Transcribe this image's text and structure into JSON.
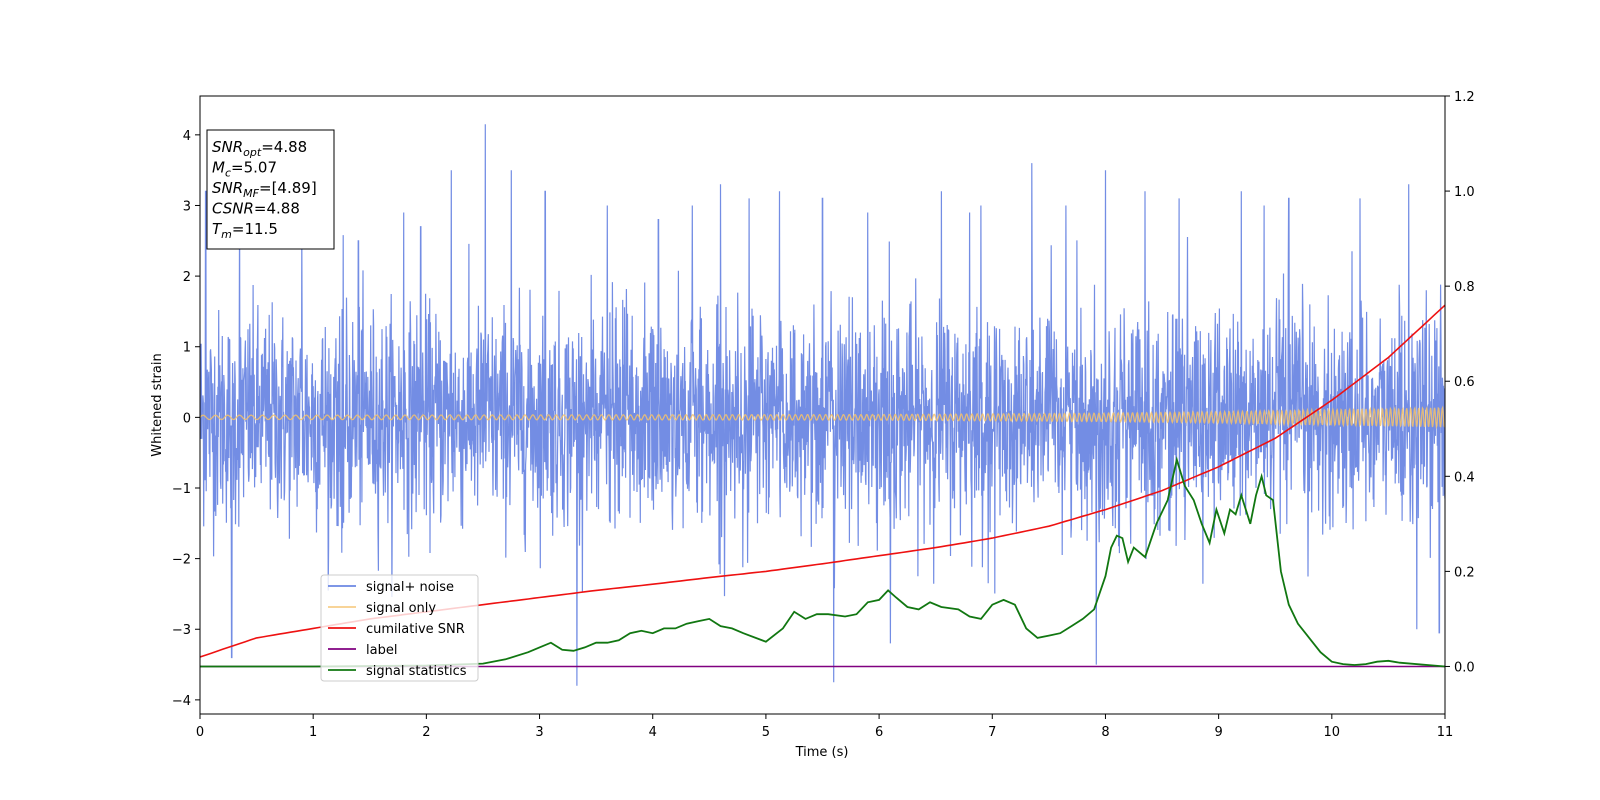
{
  "chart_data": {
    "type": "line",
    "xlabel": "Time (s)",
    "ylabel": "Whitened strain",
    "xlim": [
      0,
      11
    ],
    "ylim": [
      -4.2,
      4.55
    ],
    "ylim_right": [
      -0.1,
      1.2
    ],
    "x_ticks": [
      0,
      1,
      2,
      3,
      4,
      5,
      6,
      7,
      8,
      9,
      10,
      11
    ],
    "y_ticks": [
      -4,
      -3,
      -2,
      -1,
      0,
      1,
      2,
      3,
      4
    ],
    "y_ticks_right": [
      0.0,
      0.2,
      0.4,
      0.6,
      0.8,
      1.0,
      1.2
    ],
    "grid": false,
    "legend_position": "lower-left",
    "annotation": [
      {
        "base": "SNR",
        "sub": "opt",
        "value": "=4.88"
      },
      {
        "base": "M",
        "sub": "c",
        "value": "=5.07"
      },
      {
        "base": "SNR",
        "sub": "MF",
        "value": "=[4.89]"
      },
      {
        "base": "CSNR",
        "sub": "",
        "value": "=4.88"
      },
      {
        "base": "T",
        "sub": "m",
        "value": "=11.5"
      }
    ],
    "series": [
      {
        "name": "signal+ noise",
        "color": "#6b87e3",
        "axis": "left",
        "kind": "noise",
        "x_range": [
          0,
          11
        ],
        "sigma": 0.75,
        "spikes": [
          [
            0.05,
            3.2
          ],
          [
            0.28,
            -3.4
          ],
          [
            0.35,
            3.1
          ],
          [
            0.9,
            2.6
          ],
          [
            1.4,
            2.5
          ],
          [
            1.8,
            2.9
          ],
          [
            1.95,
            2.7
          ],
          [
            2.22,
            3.5
          ],
          [
            2.52,
            4.15
          ],
          [
            2.75,
            3.5
          ],
          [
            3.05,
            3.2
          ],
          [
            3.33,
            -3.8
          ],
          [
            3.6,
            3.0
          ],
          [
            4.05,
            2.8
          ],
          [
            4.35,
            3.0
          ],
          [
            4.6,
            3.3
          ],
          [
            4.85,
            3.1
          ],
          [
            5.12,
            3.2
          ],
          [
            5.5,
            3.1
          ],
          [
            5.6,
            -3.75
          ],
          [
            5.9,
            2.9
          ],
          [
            6.1,
            -3.2
          ],
          [
            6.55,
            3.2
          ],
          [
            6.8,
            2.9
          ],
          [
            6.9,
            3.0
          ],
          [
            7.35,
            3.6
          ],
          [
            7.65,
            3.0
          ],
          [
            7.92,
            -3.5
          ],
          [
            8.0,
            3.5
          ],
          [
            8.35,
            3.2
          ],
          [
            8.65,
            3.1
          ],
          [
            9.2,
            3.2
          ],
          [
            9.4,
            3.0
          ],
          [
            9.62,
            3.1
          ],
          [
            10.25,
            3.1
          ],
          [
            10.68,
            3.3
          ],
          [
            10.75,
            -3.0
          ],
          [
            10.95,
            -3.05
          ]
        ]
      },
      {
        "name": "signal only",
        "color": "#f5c26b",
        "axis": "left",
        "kind": "chirp",
        "envelope": {
          "x": [
            0,
            6,
            8,
            9,
            10,
            11
          ],
          "amp": [
            0.03,
            0.04,
            0.06,
            0.08,
            0.11,
            0.14
          ]
        }
      },
      {
        "name": "cumilative SNR",
        "color": "#ee1111",
        "axis": "right",
        "x": [
          0,
          0.5,
          1,
          1.5,
          2,
          2.5,
          3,
          3.5,
          4,
          4.5,
          5,
          5.5,
          6,
          6.5,
          7,
          7.5,
          8,
          8.5,
          9,
          9.5,
          10,
          10.5,
          11
        ],
        "y": [
          0.02,
          0.06,
          0.08,
          0.1,
          0.115,
          0.13,
          0.145,
          0.16,
          0.173,
          0.187,
          0.2,
          0.216,
          0.233,
          0.25,
          0.27,
          0.295,
          0.33,
          0.37,
          0.42,
          0.48,
          0.56,
          0.65,
          0.76
        ]
      },
      {
        "name": "label",
        "color": "#800080",
        "axis": "right",
        "x": [
          0,
          11
        ],
        "y": [
          0.0,
          0.0
        ]
      },
      {
        "name": "signal statistics",
        "color": "#117711",
        "axis": "right",
        "x": [
          0,
          1,
          2,
          2.5,
          2.7,
          2.9,
          3.0,
          3.1,
          3.2,
          3.3,
          3.4,
          3.5,
          3.6,
          3.7,
          3.8,
          3.9,
          4.0,
          4.1,
          4.2,
          4.3,
          4.4,
          4.5,
          4.6,
          4.7,
          4.8,
          5.0,
          5.15,
          5.25,
          5.35,
          5.45,
          5.55,
          5.7,
          5.8,
          5.9,
          6.0,
          6.08,
          6.15,
          6.25,
          6.35,
          6.45,
          6.55,
          6.7,
          6.8,
          6.9,
          7.0,
          7.1,
          7.2,
          7.3,
          7.4,
          7.5,
          7.6,
          7.7,
          7.8,
          7.9,
          8.0,
          8.05,
          8.1,
          8.15,
          8.2,
          8.25,
          8.35,
          8.45,
          8.55,
          8.63,
          8.7,
          8.78,
          8.85,
          8.92,
          8.98,
          9.05,
          9.1,
          9.15,
          9.2,
          9.28,
          9.33,
          9.38,
          9.42,
          9.48,
          9.55,
          9.62,
          9.7,
          9.8,
          9.9,
          10.0,
          10.1,
          10.2,
          10.3,
          10.4,
          10.5,
          10.6,
          11.0
        ],
        "y": [
          0.0,
          0.0,
          0.002,
          0.006,
          0.015,
          0.03,
          0.04,
          0.05,
          0.035,
          0.033,
          0.04,
          0.05,
          0.05,
          0.055,
          0.07,
          0.075,
          0.07,
          0.08,
          0.08,
          0.09,
          0.095,
          0.1,
          0.085,
          0.08,
          0.07,
          0.052,
          0.08,
          0.115,
          0.1,
          0.11,
          0.11,
          0.105,
          0.11,
          0.135,
          0.14,
          0.16,
          0.145,
          0.125,
          0.12,
          0.135,
          0.125,
          0.12,
          0.105,
          0.1,
          0.13,
          0.14,
          0.13,
          0.08,
          0.06,
          0.065,
          0.07,
          0.085,
          0.1,
          0.12,
          0.19,
          0.25,
          0.275,
          0.27,
          0.22,
          0.25,
          0.23,
          0.3,
          0.35,
          0.435,
          0.38,
          0.35,
          0.3,
          0.26,
          0.33,
          0.28,
          0.33,
          0.32,
          0.36,
          0.3,
          0.36,
          0.4,
          0.36,
          0.35,
          0.2,
          0.13,
          0.09,
          0.06,
          0.03,
          0.01,
          0.005,
          0.003,
          0.005,
          0.01,
          0.012,
          0.008,
          0.0
        ]
      }
    ]
  }
}
